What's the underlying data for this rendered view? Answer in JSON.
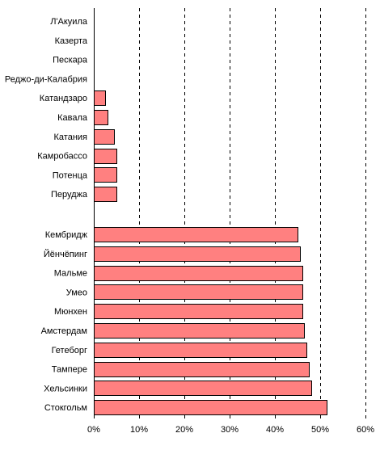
{
  "chart_data": {
    "type": "bar",
    "orientation": "horizontal",
    "title": "",
    "xlabel": "",
    "ylabel": "",
    "xlim": [
      0,
      60
    ],
    "x_ticks": [
      "0%",
      "10%",
      "20%",
      "30%",
      "40%",
      "50%",
      "60%"
    ],
    "x_tick_values": [
      0,
      10,
      20,
      30,
      40,
      50,
      60
    ],
    "grid": "vertical dashed",
    "bar_color": "#ff8080",
    "groups": [
      {
        "categories": [
          "Л'Акуила",
          "Казерта",
          "Пескара",
          "Реджо-ди-Калабрия",
          "Катандзаро",
          "Кавала",
          "Катания",
          "Камробассо",
          "Потенца",
          "Перуджа"
        ],
        "values": [
          0,
          0,
          0,
          0,
          2.5,
          3,
          4.5,
          5,
          5,
          5
        ]
      },
      {
        "categories": [
          "Кембридж",
          "Йёнчёпинг",
          "Мальме",
          "Умео",
          "Мюнхен",
          "Амстердам",
          "Гетеборг",
          "Тампере",
          "Хельсинки",
          "Стокгольм"
        ],
        "values": [
          45,
          45.5,
          46,
          46,
          46,
          46.5,
          47,
          47.5,
          48,
          51.5
        ]
      }
    ]
  }
}
